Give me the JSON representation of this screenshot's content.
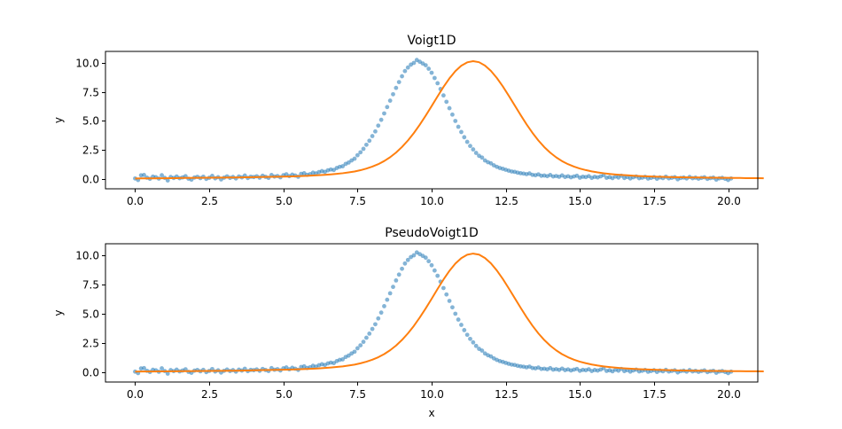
{
  "chart_data": [
    {
      "type": "scatter",
      "title": "Voigt1D",
      "xlabel": "",
      "ylabel": "y",
      "xlim": [
        -1.0,
        21.0
      ],
      "ylim": [
        -0.84,
        10.99
      ],
      "xticks": [
        0.0,
        2.5,
        5.0,
        7.5,
        10.0,
        12.5,
        15.0,
        17.5,
        20.0
      ],
      "xtick_labels": [
        "0.0",
        "2.5",
        "5.0",
        "7.5",
        "10.0",
        "12.5",
        "15.0",
        "17.5",
        "20.0"
      ],
      "yticks": [
        0.0,
        2.5,
        5.0,
        7.5,
        10.0
      ],
      "ytick_labels": [
        "0.0",
        "2.5",
        "5.0",
        "7.5",
        "10.0"
      ],
      "grid": false,
      "series_ref": "shared_series"
    },
    {
      "type": "scatter",
      "title": "PseudoVoigt1D",
      "xlabel": "x",
      "ylabel": "y",
      "xlim": [
        -1.0,
        21.0
      ],
      "ylim": [
        -0.84,
        10.99
      ],
      "xticks": [
        0.0,
        2.5,
        5.0,
        7.5,
        10.0,
        12.5,
        15.0,
        17.5,
        20.0
      ],
      "xtick_labels": [
        "0.0",
        "2.5",
        "5.0",
        "7.5",
        "10.0",
        "12.5",
        "15.0",
        "17.5",
        "20.0"
      ],
      "yticks": [
        0.0,
        2.5,
        5.0,
        7.5,
        10.0
      ],
      "ytick_labels": [
        "0.0",
        "2.5",
        "5.0",
        "7.5",
        "10.0"
      ],
      "grid": false,
      "series_ref": "shared_series"
    }
  ],
  "shared_series": {
    "colors": {
      "points": "#1f77b4",
      "fit": "#ff7f0e"
    },
    "x_start": 0.0,
    "x_step": 0.1,
    "points_y": [
      0.05,
      -0.08,
      0.32,
      0.35,
      0.12,
      0.02,
      0.21,
      0.16,
      0.04,
      0.33,
      0.1,
      -0.12,
      0.18,
      0.09,
      0.22,
      0.07,
      0.14,
      0.25,
      0.03,
      -0.05,
      0.13,
      0.19,
      0.08,
      0.2,
      0.01,
      0.11,
      0.27,
      0.06,
      0.16,
      -0.03,
      0.12,
      0.23,
      0.1,
      0.18,
      0.05,
      0.22,
      0.14,
      0.3,
      0.09,
      0.2,
      0.17,
      0.24,
      0.12,
      0.28,
      0.19,
      0.1,
      0.35,
      0.21,
      0.26,
      0.15,
      0.33,
      0.41,
      0.25,
      0.38,
      0.3,
      0.2,
      0.45,
      0.5,
      0.36,
      0.42,
      0.55,
      0.48,
      0.6,
      0.68,
      0.62,
      0.75,
      0.82,
      0.78,
      0.95,
      1.05,
      1.1,
      1.3,
      1.42,
      1.6,
      1.75,
      2.05,
      2.3,
      2.6,
      2.95,
      3.3,
      3.7,
      4.1,
      4.6,
      5.1,
      5.65,
      6.2,
      6.75,
      7.3,
      7.85,
      8.35,
      8.85,
      9.3,
      9.6,
      9.85,
      10.0,
      10.25,
      10.1,
      9.95,
      9.8,
      9.5,
      9.15,
      8.7,
      8.25,
      7.75,
      7.2,
      6.65,
      6.1,
      5.55,
      5.0,
      4.5,
      4.05,
      3.6,
      3.2,
      2.85,
      2.55,
      2.25,
      2.0,
      1.85,
      1.6,
      1.45,
      1.35,
      1.18,
      1.05,
      0.95,
      0.88,
      0.8,
      0.72,
      0.65,
      0.62,
      0.55,
      0.5,
      0.47,
      0.42,
      0.48,
      0.36,
      0.33,
      0.4,
      0.28,
      0.3,
      0.25,
      0.35,
      0.22,
      0.26,
      0.2,
      0.31,
      0.18,
      0.24,
      0.15,
      0.22,
      0.28,
      0.12,
      0.2,
      0.17,
      0.25,
      0.1,
      0.19,
      0.14,
      0.23,
      0.34,
      0.11,
      0.16,
      0.08,
      0.21,
      0.13,
      0.28,
      0.09,
      0.18,
      0.05,
      0.15,
      0.22,
      0.07,
      0.12,
      0.19,
      0.04,
      0.1,
      0.17,
      0.02,
      0.14,
      0.08,
      0.2,
      0.06,
      0.11,
      0.16,
      -0.02,
      0.09,
      0.13,
      0.05,
      0.18,
      0.07,
      0.12,
      0.03,
      0.1,
      0.15,
      0.01,
      0.08,
      0.12,
      -0.05,
      0.06,
      0.1,
      0.02,
      -0.08,
      0.05
    ],
    "fit_y": [
      0.05,
      0.06,
      0.06,
      0.06,
      0.07,
      0.07,
      0.08,
      0.08,
      0.09,
      0.09,
      0.1,
      0.1,
      0.11,
      0.11,
      0.12,
      0.12,
      0.13,
      0.13,
      0.14,
      0.15,
      0.16,
      0.17,
      0.18,
      0.19,
      0.2,
      0.21,
      0.22,
      0.24,
      0.26,
      0.28,
      0.3,
      0.33,
      0.36,
      0.4,
      0.45,
      0.5,
      0.57,
      0.65,
      0.76,
      0.9,
      1.07,
      1.28,
      1.55,
      1.88,
      2.28,
      2.76,
      3.32,
      3.96,
      4.68,
      5.46,
      6.28,
      7.12,
      7.93,
      8.67,
      9.29,
      9.76,
      10.05,
      10.15,
      10.06,
      9.77,
      9.31,
      8.7,
      7.98,
      7.18,
      6.35,
      5.52,
      4.72,
      3.98,
      3.32,
      2.75,
      2.27,
      1.87,
      1.54,
      1.28,
      1.07,
      0.9,
      0.77,
      0.66,
      0.57,
      0.5,
      0.44,
      0.39,
      0.35,
      0.32,
      0.29,
      0.26,
      0.24,
      0.22,
      0.2,
      0.19,
      0.17,
      0.16,
      0.15,
      0.14,
      0.13,
      0.13,
      0.12,
      0.11,
      0.11,
      0.1,
      0.1,
      0.09,
      0.09,
      0.08,
      0.08,
      0.08,
      0.07
    ],
    "fit_x_start": 0.0,
    "fit_x_step": 0.2
  }
}
